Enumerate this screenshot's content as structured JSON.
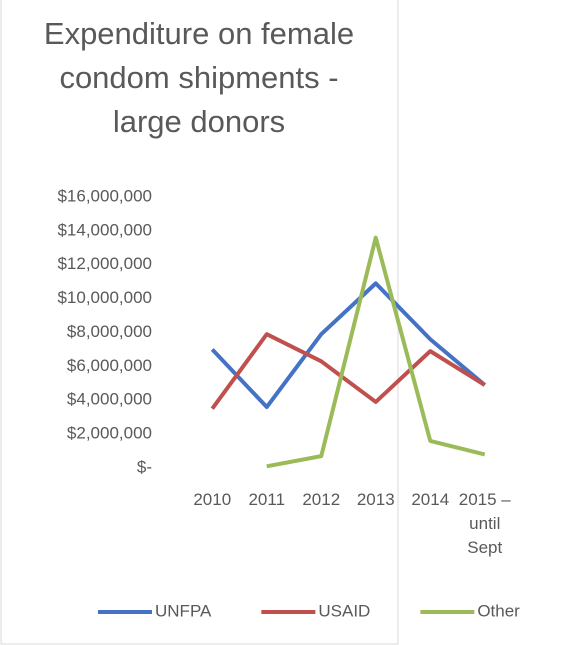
{
  "chart_data": {
    "type": "line",
    "title": "Expenditure on female condom shipments - large donors",
    "categories": [
      "2010",
      "2011",
      "2012",
      "2013",
      "2014",
      "2015 – until Sept"
    ],
    "series": [
      {
        "name": "UNFPA",
        "color": "#4472c4",
        "values": [
          7000000,
          3600000,
          7900000,
          10900000,
          7600000,
          4900000
        ]
      },
      {
        "name": "USAID",
        "color": "#c0504d",
        "values": [
          3500000,
          7900000,
          6300000,
          3900000,
          6900000,
          4900000
        ]
      },
      {
        "name": "Other",
        "color": "#9bbb59",
        "values": [
          null,
          100000,
          700000,
          13600000,
          1600000,
          800000
        ]
      }
    ],
    "ylim": [
      0,
      16000000
    ],
    "yticks": [
      {
        "value": 0,
        "label": "$-"
      },
      {
        "value": 2000000,
        "label": "$2,000,000"
      },
      {
        "value": 4000000,
        "label": "$4,000,000"
      },
      {
        "value": 6000000,
        "label": "$6,000,000"
      },
      {
        "value": 8000000,
        "label": "$8,000,000"
      },
      {
        "value": 10000000,
        "label": "$10,000,000"
      },
      {
        "value": 12000000,
        "label": "$12,000,000"
      },
      {
        "value": 14000000,
        "label": "$14,000,000"
      },
      {
        "value": 16000000,
        "label": "$16,000,000"
      }
    ],
    "grid": false,
    "legend": "bottom"
  }
}
